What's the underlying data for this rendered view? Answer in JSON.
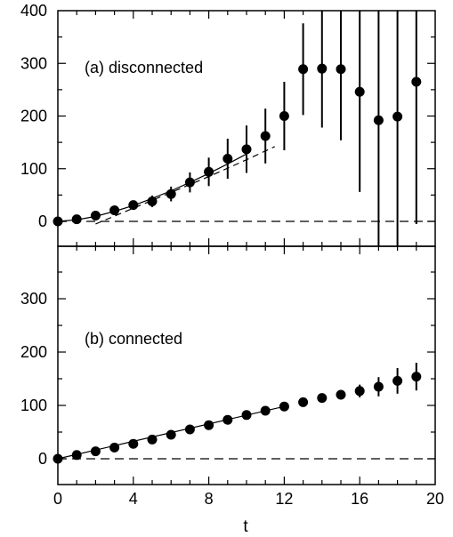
{
  "chart_data": [
    {
      "type": "scatter",
      "panel_label": "(a) disconnected",
      "xlabel": "t",
      "ylabel": "",
      "xlim": [
        0,
        20
      ],
      "ylim": [
        -50,
        400
      ],
      "x_ticks": [
        "0",
        "4",
        "8",
        "12",
        "16",
        "20"
      ],
      "y_ticks": [
        "0",
        "100",
        "200",
        "300",
        "400"
      ],
      "series": [
        {
          "x": [
            0,
            1,
            2,
            3,
            4,
            5,
            6,
            7,
            8,
            9,
            10,
            11,
            12,
            13,
            14,
            15,
            16,
            17,
            18,
            19
          ],
          "y": [
            0,
            4,
            11,
            21,
            31,
            38,
            52,
            74,
            94,
            119,
            137,
            162,
            200,
            289,
            290,
            289,
            246,
            192,
            199,
            265
          ],
          "err": [
            0,
            3,
            4,
            5,
            6,
            11,
            14,
            19,
            27,
            38,
            45,
            52,
            65,
            87,
            112,
            135,
            190,
            400,
            400,
            270
          ]
        }
      ],
      "fits": [
        {
          "style": "solid",
          "x": [
            0,
            1,
            2,
            3,
            4,
            5,
            6,
            7,
            8,
            9,
            10
          ],
          "y": [
            0,
            3,
            9.5,
            19,
            30,
            43.5,
            58,
            74,
            91,
            109,
            128
          ]
        },
        {
          "style": "dashed",
          "x": [
            2,
            4,
            6,
            8,
            10,
            11.5
          ],
          "y": [
            -5,
            25,
            55,
            85,
            117,
            142
          ]
        },
        {
          "style": "dashed",
          "x": [
            0,
            20
          ],
          "y": [
            0,
            0
          ]
        }
      ]
    },
    {
      "type": "scatter",
      "panel_label": "(b) connected",
      "xlabel": "t",
      "ylabel": "",
      "xlim": [
        0,
        20
      ],
      "ylim": [
        -50,
        400
      ],
      "x_ticks": [
        "0",
        "4",
        "8",
        "12",
        "16",
        "20"
      ],
      "y_ticks": [
        "0",
        "100",
        "200",
        "300"
      ],
      "series": [
        {
          "x": [
            0,
            1,
            2,
            3,
            4,
            5,
            6,
            7,
            8,
            9,
            10,
            11,
            12,
            13,
            14,
            15,
            16,
            17,
            18,
            19
          ],
          "y": [
            0,
            7,
            14,
            21,
            28,
            36,
            45,
            55,
            63,
            73,
            82,
            90,
            98,
            106,
            114,
            120,
            127,
            135,
            146,
            154
          ],
          "err": [
            0,
            1,
            1,
            1,
            2,
            2,
            2,
            3,
            3,
            3,
            4,
            4,
            5,
            6,
            7,
            9,
            12,
            18,
            24,
            26
          ]
        }
      ],
      "fits": [
        {
          "style": "solid",
          "x": [
            0,
            12
          ],
          "y": [
            0,
            98
          ]
        },
        {
          "style": "dashed",
          "x": [
            0,
            20
          ],
          "y": [
            0,
            0
          ]
        }
      ]
    }
  ]
}
